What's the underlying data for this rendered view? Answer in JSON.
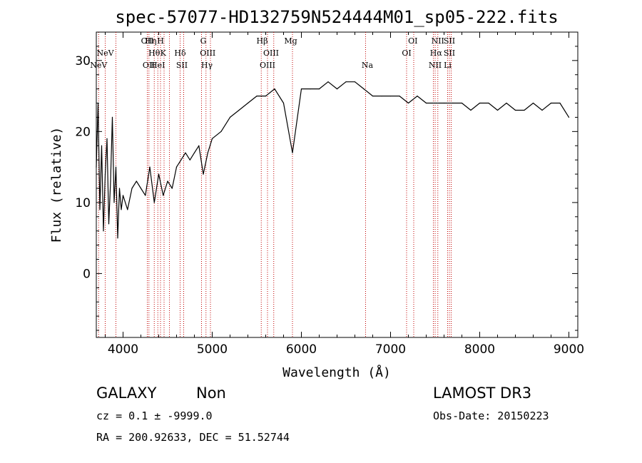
{
  "chart_data": {
    "type": "line",
    "title": "spec-57077-HD132759N524444M01_sp05-222.fits",
    "xlabel": "Wavelength (Å)",
    "ylabel": "Flux (relative)",
    "xlim": [
      3700,
      9100
    ],
    "ylim": [
      -9,
      34
    ],
    "xticks": [
      4000,
      5000,
      6000,
      7000,
      8000,
      9000
    ],
    "yticks": [
      0,
      10,
      20,
      30
    ],
    "grid": false,
    "series": [
      {
        "color": "#000000",
        "x": [
          3700,
          3720,
          3740,
          3760,
          3780,
          3800,
          3820,
          3840,
          3860,
          3880,
          3900,
          3920,
          3940,
          3960,
          3980,
          4000,
          4050,
          4100,
          4150,
          4200,
          4250,
          4300,
          4350,
          4400,
          4450,
          4500,
          4550,
          4600,
          4650,
          4700,
          4750,
          4800,
          4850,
          4900,
          4950,
          5000,
          5100,
          5200,
          5300,
          5400,
          5500,
          5600,
          5700,
          5800,
          5900,
          6000,
          6100,
          6200,
          6300,
          6400,
          6500,
          6600,
          6700,
          6800,
          6900,
          7000,
          7100,
          7200,
          7300,
          7400,
          7500,
          7600,
          7700,
          7800,
          7900,
          8000,
          8100,
          8200,
          8300,
          8400,
          8500,
          8600,
          8700,
          8800,
          8900,
          9000
        ],
        "y": [
          15,
          24,
          9,
          18,
          6,
          14,
          19,
          7,
          13,
          22,
          10,
          15,
          5,
          12,
          9,
          11,
          9,
          12,
          13,
          12,
          11,
          15,
          10,
          14,
          11,
          13,
          12,
          15,
          16,
          17,
          16,
          17,
          18,
          14,
          17,
          19,
          20,
          22,
          23,
          24,
          25,
          25,
          26,
          24,
          17,
          26,
          26,
          26,
          27,
          26,
          27,
          27,
          26,
          25,
          25,
          25,
          25,
          24,
          25,
          24,
          24,
          24,
          24,
          24,
          23,
          24,
          24,
          23,
          24,
          23,
          23,
          24,
          23,
          24,
          24,
          22
        ]
      }
    ],
    "annotations": [
      {
        "line": "NeV",
        "x": 3726,
        "row": 2
      },
      {
        "line": "NeV",
        "x": 3800,
        "row": 1
      },
      {
        "line": "OII",
        "x": 4272,
        "row": 0
      },
      {
        "line": "OII",
        "x": 4290,
        "row": 2
      },
      {
        "line": "Hη",
        "x": 4311,
        "row": 0
      },
      {
        "line": "Hθ",
        "x": 4350,
        "row": 1
      },
      {
        "line": "HeI",
        "x": 4390,
        "row": 2
      },
      {
        "line": "H",
        "x": 4420,
        "row": 0
      },
      {
        "line": "K",
        "x": 4450,
        "row": 1
      },
      {
        "line": "Hδ",
        "x": 4640,
        "row": 1
      },
      {
        "line": "SII",
        "x": 4660,
        "row": 2
      },
      {
        "line": "G",
        "x": 4900,
        "row": 0
      },
      {
        "line": "OIII",
        "x": 4950,
        "row": 1
      },
      {
        "line": "Hγ",
        "x": 4940,
        "row": 2
      },
      {
        "line": "Hβ",
        "x": 5560,
        "row": 0
      },
      {
        "line": "OIII",
        "x": 5660,
        "row": 1
      },
      {
        "line": "OIII",
        "x": 5620,
        "row": 2
      },
      {
        "line": "Mg",
        "x": 5880,
        "row": 0
      },
      {
        "line": "Na",
        "x": 6740,
        "row": 2
      },
      {
        "line": "OI",
        "x": 7250,
        "row": 0
      },
      {
        "line": "OI",
        "x": 7180,
        "row": 1
      },
      {
        "line": "NII",
        "x": 7530,
        "row": 0
      },
      {
        "line": "Hα",
        "x": 7510,
        "row": 1
      },
      {
        "line": "NII",
        "x": 7500,
        "row": 2
      },
      {
        "line": "SII",
        "x": 7660,
        "row": 0
      },
      {
        "line": "SII",
        "x": 7660,
        "row": 1
      },
      {
        "line": "Li",
        "x": 7640,
        "row": 2
      }
    ],
    "line_markers": [
      3726,
      3800,
      3920,
      4272,
      4290,
      4350,
      4390,
      4420,
      4460,
      4520,
      4640,
      4680,
      4880,
      4930,
      4980,
      5550,
      5620,
      5690,
      5900,
      6720,
      7180,
      7260,
      7480,
      7500,
      7530,
      7640,
      7660,
      7680
    ],
    "marker_color": "#c00000"
  },
  "info": {
    "object_class": "GALAXY",
    "subclass": "Non",
    "survey": "LAMOST DR3",
    "cz": "cz = 0.1 ± -9999.0",
    "obs_date": "Obs-Date: 20150223",
    "coords": "RA = 200.92633, DEC =  51.52744"
  }
}
